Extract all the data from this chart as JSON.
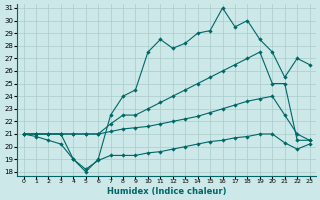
{
  "xlabel": "Humidex (Indice chaleur)",
  "bg_color": "#cce8e8",
  "grid_color": "#aacccc",
  "line_color": "#006666",
  "xlim": [
    0,
    23
  ],
  "ylim": [
    18,
    31
  ],
  "xticks": [
    0,
    1,
    2,
    3,
    4,
    5,
    6,
    7,
    8,
    9,
    10,
    11,
    12,
    13,
    14,
    15,
    16,
    17,
    18,
    19,
    20,
    21,
    22,
    23
  ],
  "yticks": [
    18,
    19,
    20,
    21,
    22,
    23,
    24,
    25,
    26,
    27,
    28,
    29,
    30,
    31
  ],
  "line1_x": [
    0,
    1,
    2,
    3,
    4,
    5,
    6,
    7,
    8,
    9,
    10,
    11,
    12,
    13,
    14,
    15,
    16,
    17,
    18,
    19,
    20,
    21,
    22,
    23
  ],
  "line1_y": [
    21.0,
    20.8,
    20.5,
    20.2,
    19.0,
    18.2,
    18.9,
    19.3,
    19.3,
    19.3,
    19.5,
    19.6,
    19.8,
    20.0,
    20.2,
    20.4,
    20.5,
    20.7,
    20.8,
    21.0,
    21.0,
    20.3,
    19.8,
    20.2
  ],
  "line2_x": [
    0,
    1,
    2,
    3,
    4,
    5,
    6,
    7,
    8,
    9,
    10,
    11,
    12,
    13,
    14,
    15,
    16,
    17,
    18,
    19,
    20,
    21,
    22,
    23
  ],
  "line2_y": [
    21.0,
    21.0,
    21.0,
    21.0,
    21.0,
    21.0,
    21.0,
    21.2,
    21.4,
    21.5,
    21.6,
    21.8,
    22.0,
    22.2,
    22.4,
    22.7,
    23.0,
    23.3,
    23.6,
    23.8,
    24.0,
    22.5,
    21.0,
    20.5
  ],
  "line3_x": [
    0,
    1,
    2,
    3,
    4,
    5,
    6,
    7,
    8,
    9,
    10,
    11,
    12,
    13,
    14,
    15,
    16,
    17,
    18,
    19,
    20,
    21,
    22,
    23
  ],
  "line3_y": [
    21.0,
    21.0,
    21.0,
    21.0,
    21.0,
    21.0,
    21.0,
    21.8,
    22.5,
    22.5,
    23.0,
    23.5,
    24.0,
    24.5,
    25.0,
    25.5,
    26.0,
    26.5,
    27.0,
    27.5,
    25.0,
    25.0,
    20.5,
    20.5
  ],
  "line4_x": [
    0,
    1,
    2,
    3,
    4,
    5,
    6,
    7,
    8,
    9,
    10,
    11,
    12,
    13,
    14,
    15,
    16,
    17,
    18,
    19,
    20,
    21,
    22,
    23
  ],
  "line4_y": [
    21.0,
    21.0,
    21.0,
    21.0,
    19.0,
    18.0,
    19.0,
    22.5,
    24.0,
    24.5,
    27.5,
    28.5,
    27.8,
    28.2,
    29.0,
    29.2,
    31.0,
    29.5,
    30.0,
    28.5,
    27.5,
    25.5,
    27.0,
    26.5
  ]
}
